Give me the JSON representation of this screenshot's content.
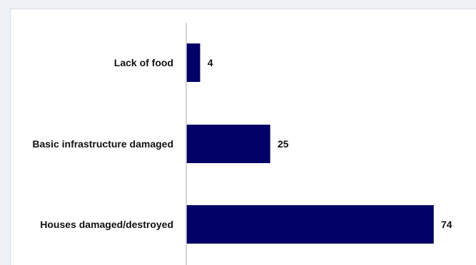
{
  "chart_data": {
    "type": "bar",
    "orientation": "horizontal",
    "title": "",
    "xlabel": "",
    "ylabel": "",
    "categories": [
      "Lack of food",
      "Basic infrastructure damaged",
      "Houses damaged/destroyed"
    ],
    "values": [
      4,
      25,
      74
    ],
    "value_labels": [
      "4",
      "25",
      "74"
    ],
    "xlim": [
      0,
      80
    ],
    "grid": false,
    "legend": "none",
    "colors": {
      "bar": "#000066",
      "axis": "#c8c8c8",
      "text": "#111111",
      "background": "#ffffff",
      "frame": "#eef2f7"
    }
  }
}
